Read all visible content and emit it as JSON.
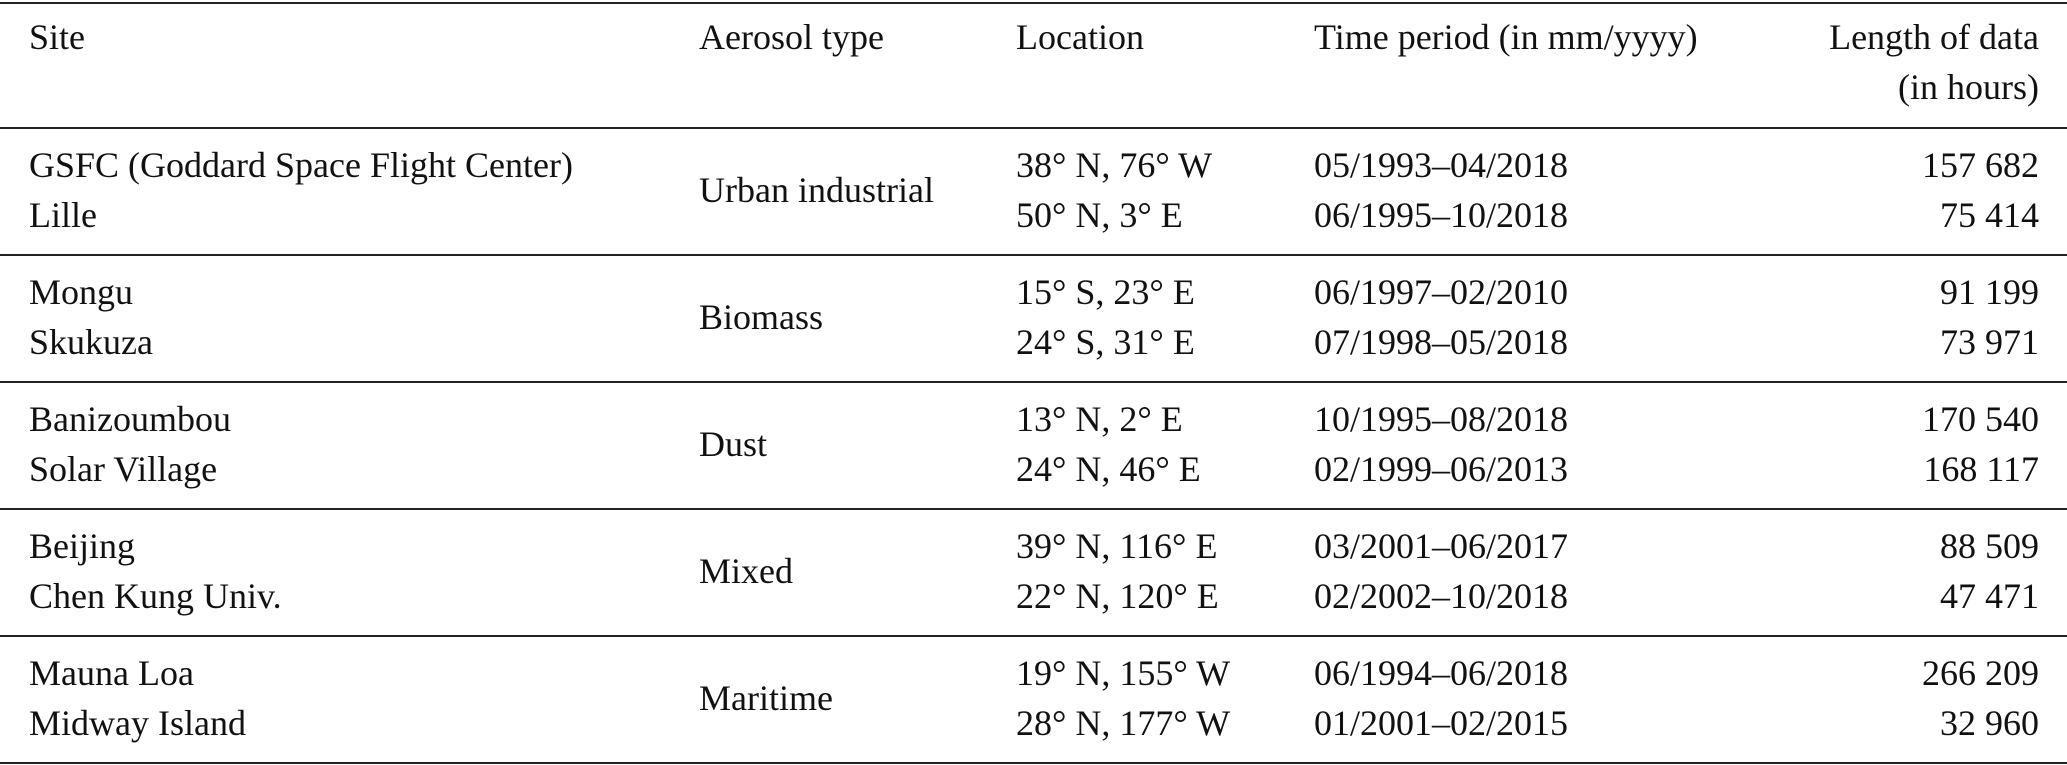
{
  "table": {
    "header": [
      "Site",
      "Aerosol type",
      "Location",
      "Time period (in mm/yyyy)",
      "Length of data\n(in hours)"
    ],
    "groups": [
      {
        "aerosol_type": "Urban industrial",
        "rows": [
          {
            "site": "GSFC (Goddard Space Flight Center)",
            "location": "38° N, 76° W",
            "period": "05/1993–04/2018",
            "length": "157 682"
          },
          {
            "site": "Lille",
            "location": "50° N, 3° E",
            "period": "06/1995–10/2018",
            "length": "75 414"
          }
        ]
      },
      {
        "aerosol_type": "Biomass",
        "rows": [
          {
            "site": "Mongu",
            "location": "15° S, 23° E",
            "period": "06/1997–02/2010",
            "length": "91 199"
          },
          {
            "site": "Skukuza",
            "location": "24° S, 31° E",
            "period": "07/1998–05/2018",
            "length": "73 971"
          }
        ]
      },
      {
        "aerosol_type": "Dust",
        "rows": [
          {
            "site": "Banizoumbou",
            "location": "13° N, 2° E",
            "period": "10/1995–08/2018",
            "length": "170 540"
          },
          {
            "site": "Solar Village",
            "location": "24° N, 46° E",
            "period": "02/1999–06/2013",
            "length": "168 117"
          }
        ]
      },
      {
        "aerosol_type": "Mixed",
        "rows": [
          {
            "site": "Beijing",
            "location": "39° N, 116° E",
            "period": "03/2001–06/2017",
            "length": "88 509"
          },
          {
            "site": "Chen Kung Univ.",
            "location": "22° N, 120° E",
            "period": "02/2002–10/2018",
            "length": "47 471"
          }
        ]
      },
      {
        "aerosol_type": "Maritime",
        "rows": [
          {
            "site": "Mauna Loa",
            "location": "19° N, 155° W",
            "period": "06/1994–06/2018",
            "length": "266 209"
          },
          {
            "site": "Midway Island",
            "location": "28° N, 177° W",
            "period": "01/2001–02/2015",
            "length": "32 960"
          }
        ]
      }
    ]
  }
}
